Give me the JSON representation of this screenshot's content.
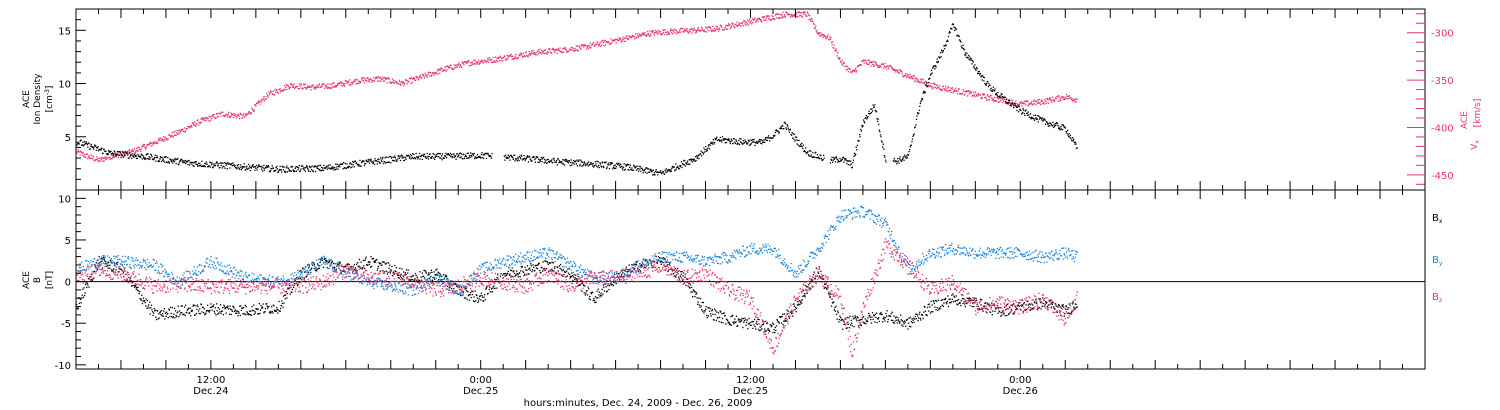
{
  "colors": {
    "black": "#000000",
    "pink": "#e8336a",
    "blue": "#1f86dd"
  },
  "chart_data": [
    {
      "type": "scatter",
      "panel": "top",
      "left_label": {
        "line1": "ACE",
        "line2": "Ion Density",
        "line3": "[cm",
        "sup": "-3",
        "close": "]"
      },
      "right_label": {
        "line1": "ACE",
        "line2": "V",
        "sub": "x",
        "line3": "[km/s]"
      },
      "left_axis": {
        "ylim": [
          0,
          17
        ],
        "ticks": [
          5,
          10,
          15
        ],
        "tick_labels": [
          "5",
          "10",
          "15"
        ]
      },
      "right_axis": {
        "ylim": [
          -466,
          -275
        ],
        "ticks": [
          -450,
          -400,
          -350,
          -300
        ],
        "tick_labels": [
          "-450",
          "-400",
          "-350",
          "-300"
        ]
      },
      "series": [
        {
          "axis": "left",
          "color": "black",
          "x": [
            0,
            3,
            6,
            10,
            14,
            18,
            22,
            27,
            30,
            33,
            36,
            40,
            43,
            46,
            49,
            52,
            55,
            57,
            59,
            61,
            62,
            63,
            64,
            65,
            66,
            67,
            68,
            69,
            70,
            71,
            72,
            73,
            74,
            75,
            76,
            77,
            78,
            79,
            80,
            81,
            82,
            84,
            86,
            88,
            89
          ],
          "y": [
            4.6,
            3.5,
            3.2,
            2.6,
            2.3,
            2.0,
            2.1,
            2.8,
            3.2,
            3.2,
            3.3,
            3.0,
            2.7,
            2.5,
            2.2,
            1.6,
            3.0,
            4.8,
            4.6,
            4.5,
            5.2,
            6.2,
            4.8,
            3.6,
            3.2,
            2.8,
            3.0,
            2.4,
            6.5,
            8.0,
            2.8,
            2.8,
            3.2,
            8.0,
            11.0,
            13.0,
            15.6,
            13.0,
            11.5,
            10.0,
            9.0,
            7.5,
            6.5,
            5.8,
            4.0
          ],
          "gaps": [
            [
              37,
              38
            ],
            [
              66.5,
              67
            ],
            [
              72,
              72.6
            ]
          ]
        },
        {
          "axis": "right",
          "color": "pink",
          "x": [
            0,
            1,
            2,
            3,
            5,
            7,
            9,
            11,
            13,
            15,
            17,
            19,
            21,
            23,
            25,
            27,
            29,
            31,
            33,
            35,
            37,
            39,
            41,
            43,
            45,
            47,
            49,
            51,
            53,
            55,
            57,
            59,
            61,
            63,
            65,
            66,
            67,
            68,
            69,
            70,
            72,
            74,
            76,
            78,
            80,
            82,
            84,
            86,
            88,
            89
          ],
          "y": [
            -425,
            -430,
            -434,
            -430,
            -425,
            -415,
            -405,
            -393,
            -385,
            -388,
            -365,
            -355,
            -357,
            -355,
            -350,
            -348,
            -353,
            -345,
            -337,
            -331,
            -328,
            -324,
            -320,
            -318,
            -315,
            -310,
            -305,
            -300,
            -298,
            -297,
            -295,
            -290,
            -285,
            -280,
            -280,
            -300,
            -305,
            -330,
            -342,
            -330,
            -335,
            -345,
            -355,
            -360,
            -365,
            -370,
            -375,
            -372,
            -367,
            -370
          ]
        }
      ]
    },
    {
      "type": "scatter",
      "panel": "bottom",
      "left_label": {
        "line1": "ACE",
        "line2": "B",
        "line3": "[nT]"
      },
      "ylim": [
        -10.5,
        11
      ],
      "ticks": [
        -10,
        -5,
        0,
        5,
        10
      ],
      "tick_labels": [
        "-10",
        "-5",
        "0",
        "5",
        "10"
      ],
      "legend": [
        {
          "name": "B",
          "sub": "x",
          "color": "black"
        },
        {
          "name": "B",
          "sub": "y",
          "color": "blue"
        },
        {
          "name": "B",
          "sub": "z",
          "color": "pink"
        }
      ],
      "series": [
        {
          "name": "Bx",
          "color": "black",
          "x": [
            0,
            2,
            4,
            7,
            9,
            12,
            15,
            18,
            20,
            22,
            24,
            26,
            28,
            30,
            32,
            34,
            36,
            38,
            40,
            42,
            44,
            46,
            48,
            50,
            52,
            54,
            56,
            58,
            60,
            62,
            64,
            66,
            68,
            70,
            72,
            74,
            76,
            78,
            80,
            82,
            84,
            86,
            88,
            89
          ],
          "y": [
            -3.0,
            2.5,
            1.5,
            -4.0,
            -3.5,
            -3.2,
            -3.4,
            -3.0,
            1.0,
            2.5,
            1.5,
            2.5,
            1.5,
            0.5,
            1.0,
            -1.0,
            -2.0,
            1.0,
            1.5,
            2.0,
            1.0,
            -2.0,
            0.5,
            2.0,
            2.5,
            0.5,
            -3.5,
            -4.5,
            -5.0,
            -5.5,
            -3.0,
            1.5,
            -5.0,
            -4.5,
            -4.0,
            -5.0,
            -3.0,
            -2.0,
            -2.5,
            -3.5,
            -3.0,
            -2.5,
            -3.5,
            -2.5
          ]
        },
        {
          "name": "By",
          "color": "blue",
          "x": [
            0,
            2,
            4,
            7,
            9,
            12,
            15,
            18,
            20,
            22,
            24,
            26,
            28,
            30,
            32,
            34,
            36,
            38,
            40,
            42,
            44,
            46,
            48,
            50,
            52,
            54,
            56,
            58,
            60,
            62,
            64,
            66,
            68,
            70,
            72,
            74,
            76,
            78,
            80,
            82,
            84,
            86,
            88,
            89
          ],
          "y": [
            1.5,
            2.5,
            2.5,
            2.0,
            0.0,
            2.5,
            0.5,
            0.0,
            1.0,
            2.5,
            1.0,
            0.0,
            -0.5,
            -1.0,
            0.5,
            -1.0,
            1.5,
            2.5,
            3.0,
            3.5,
            2.0,
            0.5,
            0.5,
            2.0,
            3.0,
            3.0,
            2.5,
            3.0,
            4.0,
            4.0,
            1.0,
            4.0,
            8.0,
            8.5,
            7.0,
            1.5,
            3.5,
            4.0,
            3.5,
            3.5,
            3.5,
            3.0,
            3.5,
            3.0
          ]
        },
        {
          "name": "Bz",
          "color": "pink",
          "x": [
            0,
            2,
            4,
            7,
            9,
            12,
            15,
            18,
            20,
            22,
            24,
            26,
            28,
            30,
            32,
            34,
            36,
            38,
            40,
            42,
            44,
            46,
            48,
            50,
            52,
            54,
            56,
            58,
            60,
            61,
            62,
            64,
            66,
            68,
            69,
            70,
            72,
            74,
            76,
            78,
            80,
            82,
            84,
            86,
            88,
            89
          ],
          "y": [
            0.5,
            1.5,
            1.0,
            -0.5,
            -0.3,
            -0.5,
            -0.5,
            -0.5,
            -0.5,
            0.0,
            1.5,
            0.5,
            0.5,
            0.0,
            -1.0,
            -0.5,
            0.5,
            0.0,
            -0.5,
            1.0,
            -0.5,
            0.5,
            0.5,
            1.0,
            2.0,
            0.5,
            1.0,
            -1.0,
            -2.0,
            -5.0,
            -8.0,
            -2.0,
            1.0,
            -2.0,
            -8.5,
            -3.0,
            4.5,
            2.0,
            -1.0,
            0.0,
            -3.0,
            -2.5,
            -3.0,
            -2.0,
            -4.5,
            -2.0
          ]
        }
      ]
    }
  ],
  "x_axis": {
    "xlim": [
      0,
      120
    ],
    "labeled_ticks": [
      {
        "x": 12,
        "time": "12:00",
        "date": "Dec.24"
      },
      {
        "x": 36,
        "time": "0:00",
        "date": "Dec.25"
      },
      {
        "x": 60,
        "time": "12:00",
        "date": "Dec.25"
      },
      {
        "x": 84,
        "time": "0:00",
        "date": "Dec.26"
      }
    ],
    "minor_every": 2,
    "major_every": 4,
    "title": "hours:minutes, Dec. 24, 2009 - Dec. 26, 2009"
  }
}
